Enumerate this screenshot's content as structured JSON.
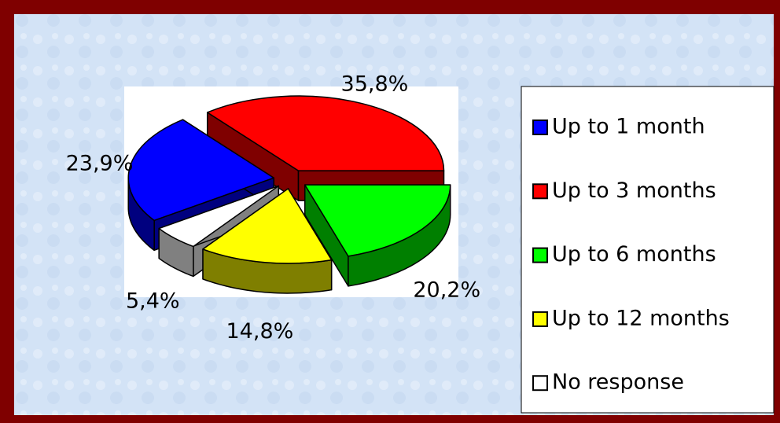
{
  "chart_data": {
    "type": "pie",
    "categories": [
      "Up to 1 month",
      "Up to 3 months",
      "Up to 6 months",
      "Up to 12 months",
      "No response"
    ],
    "values": [
      23.9,
      35.8,
      20.2,
      14.8,
      5.4
    ],
    "value_labels": [
      "23,9%",
      "35,8%",
      "20,2%",
      "14,8%",
      "5,4%"
    ],
    "colors": [
      "#0000ff",
      "#ff0000",
      "#00ff00",
      "#ffff00",
      "#ffffff"
    ],
    "legend": "right"
  }
}
